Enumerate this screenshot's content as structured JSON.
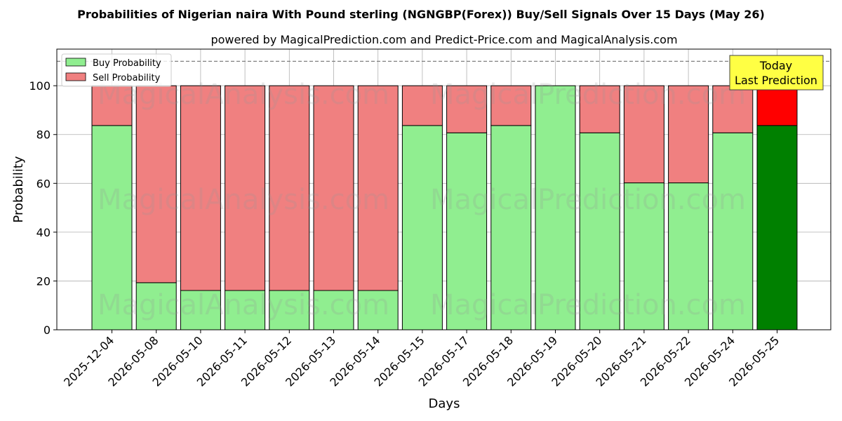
{
  "chart_data": {
    "type": "bar",
    "stacked": true,
    "title": "Probabilities of Nigerian naira With Pound sterling (NGNGBP(Forex)) Buy/Sell Signals Over 15 Days (May 26)",
    "subtitle": "powered by MagicalPrediction.com and Predict-Price.com and MagicalAnalysis.com",
    "xlabel": "Days",
    "ylabel": "Probability",
    "ylim": [
      0,
      115
    ],
    "yticks": [
      0,
      20,
      40,
      60,
      80,
      100
    ],
    "grid": true,
    "legend_position": "top-left",
    "categories": [
      "2025-12-04",
      "2026-05-08",
      "2026-05-10",
      "2026-05-11",
      "2026-05-12",
      "2026-05-13",
      "2026-05-14",
      "2026-05-15",
      "2026-05-17",
      "2026-05-18",
      "2026-05-19",
      "2026-05-20",
      "2026-05-21",
      "2026-05-22",
      "2026-05-24",
      "2026-05-25"
    ],
    "series": [
      {
        "name": "Buy Probability",
        "color": "#90ee90",
        "highlight_color": "#008000",
        "values": [
          83.7,
          19.3,
          16.1,
          16.1,
          16.1,
          16.1,
          16.1,
          83.7,
          80.7,
          83.7,
          100,
          80.7,
          60.2,
          60.2,
          80.7,
          83.7
        ]
      },
      {
        "name": "Sell Probability",
        "color": "#f08080",
        "highlight_color": "#ff0000",
        "values": [
          16.3,
          80.7,
          83.9,
          83.9,
          83.9,
          83.9,
          83.9,
          16.3,
          19.3,
          16.3,
          0,
          19.3,
          39.8,
          39.8,
          19.3,
          16.3
        ]
      }
    ],
    "highlight_index": 15,
    "reference_line": {
      "y": 110,
      "style": "dashed",
      "color": "#808080"
    },
    "annotation": {
      "text_line1": "Today",
      "text_line2": "Last Prediction",
      "background": "#ffff44"
    },
    "watermark": "MagicalAnalysis.com    MagicalPrediction.com"
  }
}
